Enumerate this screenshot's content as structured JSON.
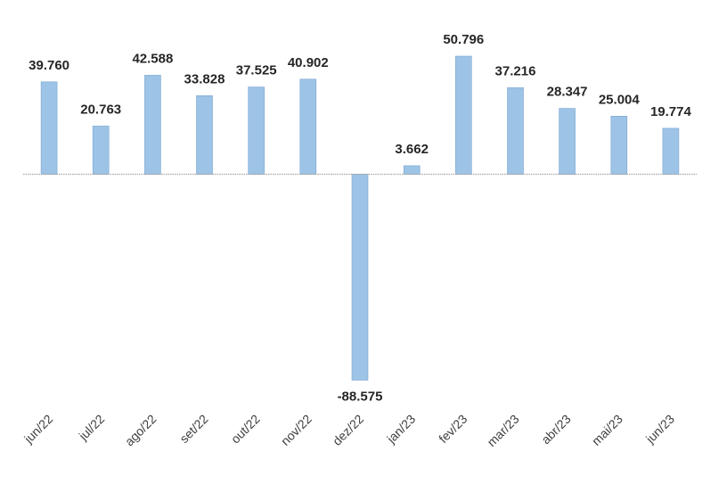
{
  "chart_data": {
    "type": "bar",
    "title": "",
    "xlabel": "",
    "ylabel": "",
    "categories": [
      "jun/22",
      "jul/22",
      "ago/22",
      "set/22",
      "out/22",
      "nov/22",
      "dez/22",
      "jan/23",
      "fev/23",
      "mar/23",
      "abr/23",
      "mai/23",
      "jun/23"
    ],
    "values": [
      39760,
      20763,
      42588,
      33828,
      37525,
      40902,
      -88575,
      3662,
      50796,
      37216,
      28347,
      25004,
      19774
    ],
    "value_labels": [
      "39.760",
      "20.763",
      "42.588",
      "33.828",
      "37.525",
      "40.902",
      "-88.575",
      "3.662",
      "50.796",
      "37.216",
      "28.347",
      "25.004",
      "19.774"
    ],
    "grid": false,
    "legend": "none",
    "bar_color": "#9DC3E6",
    "bar_edge_color": "#7AA7D3",
    "axis_color": "#A6A6A6"
  }
}
